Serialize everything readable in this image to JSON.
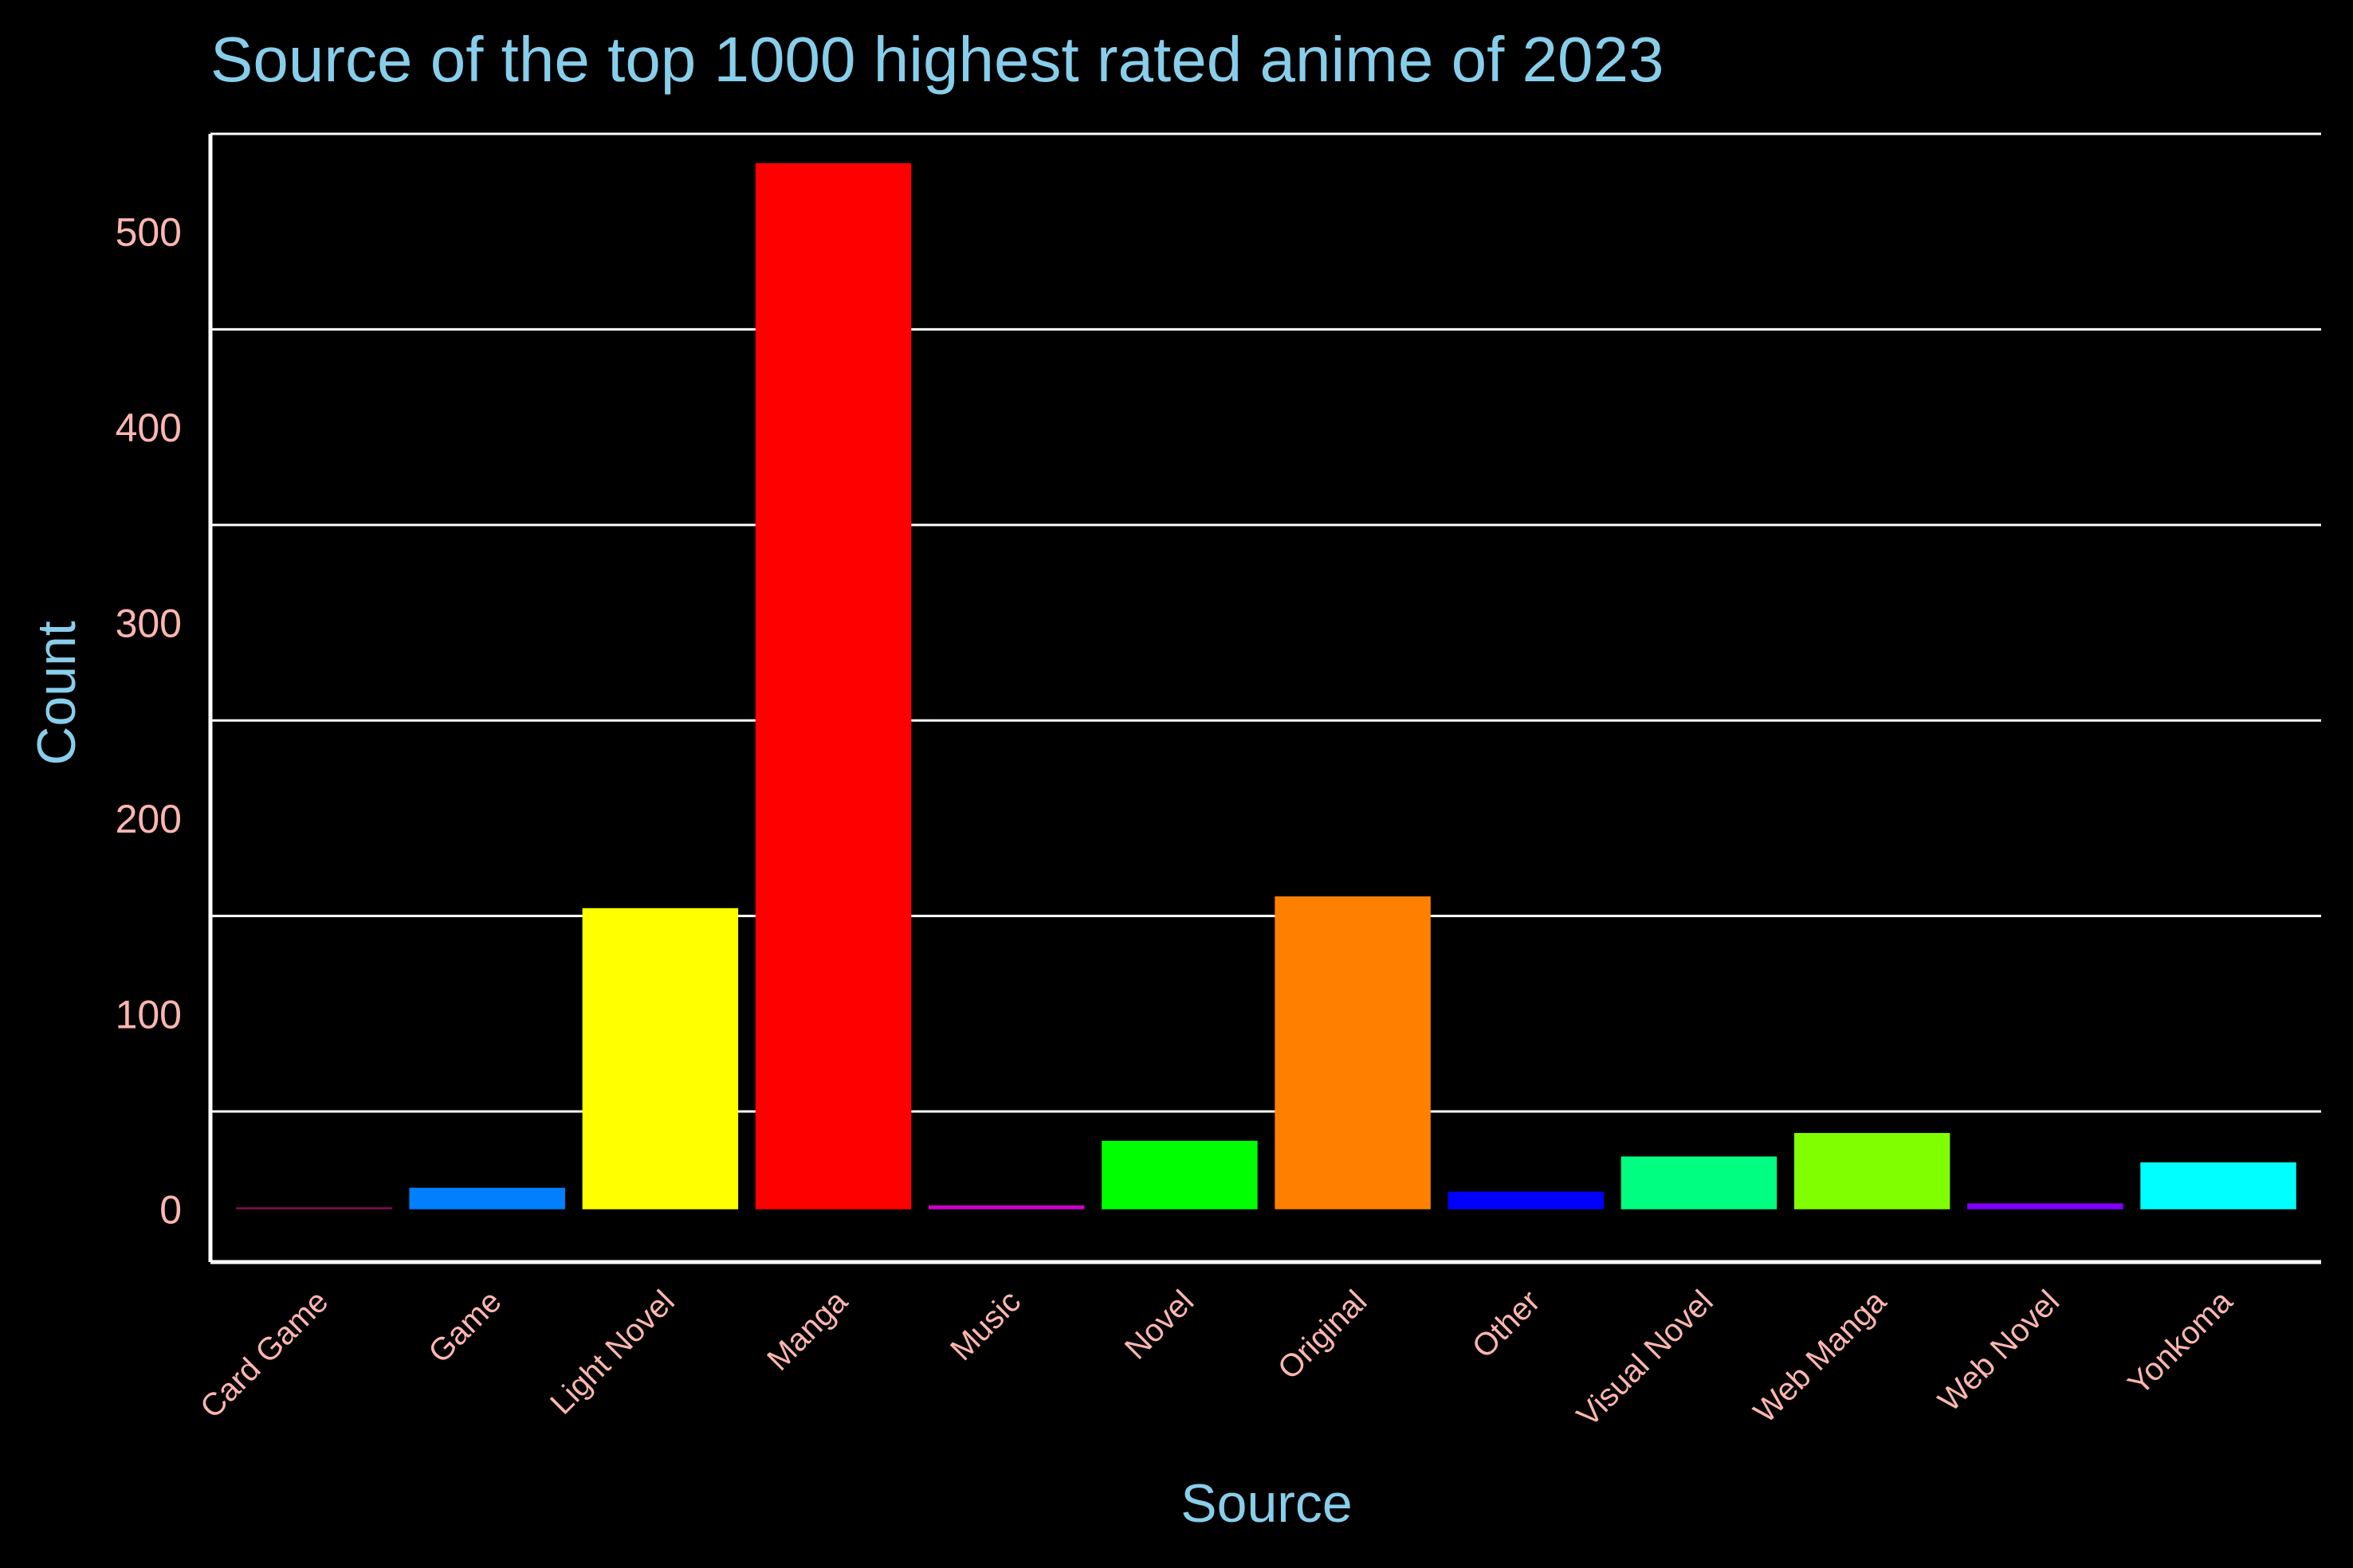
{
  "chart_data": {
    "type": "bar",
    "title": "Source of the top 1000 highest rated anime of 2023",
    "xlabel": "Source",
    "ylabel": "Count",
    "categories": [
      "Card Game",
      "Game",
      "Light Novel",
      "Manga",
      "Music",
      "Novel",
      "Original",
      "Other",
      "Visual Novel",
      "Web Manga",
      "Web Novel",
      "Yonkoma"
    ],
    "values": [
      1,
      11,
      154,
      535,
      2,
      35,
      160,
      9,
      27,
      39,
      3,
      24
    ],
    "bar_colors": [
      "#8B0A50",
      "#0080FF",
      "#FFFF00",
      "#FF0000",
      "#CC00CC",
      "#00FF00",
      "#FF8000",
      "#0000FF",
      "#00FF80",
      "#80FF00",
      "#8000FF",
      "#00FFFF"
    ],
    "ylim": [
      -27,
      550
    ],
    "yticks": [
      0,
      100,
      200,
      300,
      400,
      500
    ],
    "gridlines": [
      50,
      150,
      250,
      350,
      450,
      550
    ],
    "grid": "horizontal",
    "legend": "none",
    "colors": {
      "background": "#000000",
      "title": "#87CEEB",
      "axis_title": "#87CEEB",
      "tick_label": "#FFB6B0",
      "grid": "#FFFFFF",
      "axis_line": "#FFFFFF"
    }
  }
}
